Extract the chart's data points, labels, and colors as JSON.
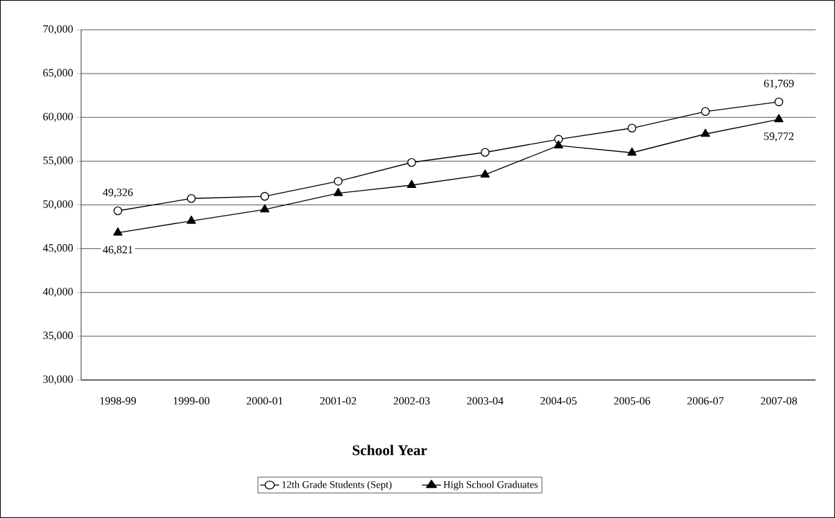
{
  "chart_data": {
    "type": "line",
    "xlabel": "School Year",
    "categories": [
      "1998-99",
      "1999-00",
      "2000-01",
      "2001-02",
      "2002-03",
      "2003-04",
      "2004-05",
      "2005-06",
      "2006-07",
      "2007-08"
    ],
    "series": [
      {
        "name": "12th Grade Students (Sept)",
        "color": "#000000",
        "marker": "circle",
        "values": [
          49326,
          50730,
          50980,
          52700,
          54850,
          56000,
          57500,
          58770,
          60670,
          61769
        ],
        "value_labels": [
          "49,326",
          null,
          null,
          null,
          null,
          null,
          null,
          null,
          null,
          "61,769"
        ]
      },
      {
        "name": "High School Graduates",
        "color": "#000000",
        "marker": "triangle",
        "values": [
          46821,
          48170,
          49480,
          51340,
          52260,
          53450,
          56780,
          55960,
          58100,
          59772
        ],
        "value_labels": [
          "46,821",
          null,
          null,
          null,
          null,
          null,
          null,
          null,
          null,
          "59,772"
        ]
      }
    ],
    "ylim": [
      30000,
      70000
    ],
    "yticks": [
      {
        "value": 30000,
        "label": "30,000"
      },
      {
        "value": 35000,
        "label": "35,000"
      },
      {
        "value": 40000,
        "label": "40,000"
      },
      {
        "value": 45000,
        "label": "45,000"
      },
      {
        "value": 50000,
        "label": "50,000"
      },
      {
        "value": 55000,
        "label": "55,000"
      },
      {
        "value": 60000,
        "label": "60,000"
      },
      {
        "value": 65000,
        "label": "65,000"
      },
      {
        "value": 70000,
        "label": "70,000"
      }
    ],
    "grid": "y",
    "legend": "bottom",
    "line_style": "solid"
  }
}
